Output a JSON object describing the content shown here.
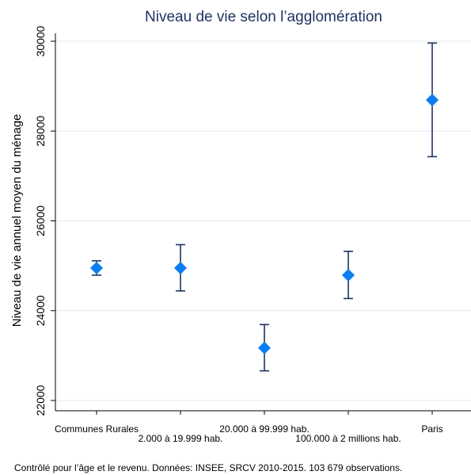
{
  "chart_data": {
    "type": "scatter",
    "title": "Niveau de vie selon l’agglomération",
    "ylabel": "Niveau de vie annuel moyen du ménage",
    "xlabel": "",
    "ylim": [
      22000,
      30000
    ],
    "yticks": [
      22000,
      24000,
      26000,
      28000,
      30000
    ],
    "ytick_labels": [
      "22000",
      "24000",
      "26000",
      "28000",
      "30000"
    ],
    "grid": true,
    "categories": [
      "Communes Rurales",
      "2.000 à 19.999 hab.",
      "20.000 à 99.999 hab.",
      "100.000 à 2 millions hab.",
      "Paris"
    ],
    "series": [
      {
        "values": [
          24950,
          24950,
          23170,
          24790,
          28690
        ],
        "ci_lower": [
          24790,
          24440,
          22660,
          24270,
          27430
        ],
        "ci_upper": [
          25110,
          25470,
          23690,
          25320,
          29960
        ]
      }
    ],
    "colors": {
      "marker": "#0b7ff0",
      "errorbar": "#1f3361",
      "title": "#1f3361"
    }
  },
  "footnote": "Contrôlé pour l’âge et le revenu. Données: INSEE, SRCV 2010-2015. 103 679 observations."
}
